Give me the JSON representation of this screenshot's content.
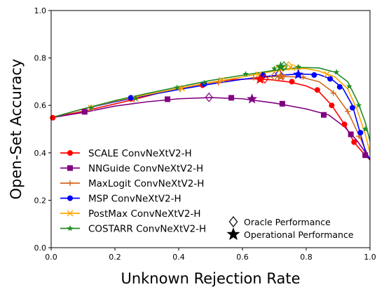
{
  "chart_data": {
    "type": "line",
    "xlabel": "Unknown Rejection Rate",
    "ylabel": "Open-Set Accuracy",
    "xlim": [
      0.0,
      1.0
    ],
    "ylim": [
      0.0,
      1.0
    ],
    "xticks": [
      "0.0",
      "0.2",
      "0.4",
      "0.6",
      "0.8",
      "1.0"
    ],
    "yticks": [
      "0.0",
      "0.2",
      "0.4",
      "0.6",
      "0.8",
      "1.0"
    ],
    "grid": false,
    "legend_position": "lower-left",
    "series": [
      {
        "name": "SCALE ConvNeXtV2-H",
        "color": "#ff0000",
        "marker": "circle",
        "x": [
          0.0,
          0.1,
          0.26,
          0.36,
          0.47,
          0.56,
          0.63,
          0.69,
          0.75,
          0.8,
          0.84,
          0.88,
          0.92,
          0.95,
          0.975,
          1.0
        ],
        "y": [
          0.548,
          0.575,
          0.625,
          0.66,
          0.69,
          0.708,
          0.712,
          0.708,
          0.698,
          0.682,
          0.658,
          0.6,
          0.52,
          0.445,
          0.405,
          0.37
        ],
        "markers_x": [
          0.005,
          0.25,
          0.475,
          0.655,
          0.755,
          0.835,
          0.88,
          0.92,
          0.95
        ],
        "markers_y": [
          0.548,
          0.628,
          0.685,
          0.712,
          0.7,
          0.665,
          0.6,
          0.52,
          0.445
        ],
        "oracle": [
          0.67,
          0.712
        ],
        "operational": [
          0.655,
          0.71
        ]
      },
      {
        "name": "NNGuide ConvNeXtV2-H",
        "color": "#800080",
        "marker": "square",
        "x": [
          0.0,
          0.1,
          0.2,
          0.3,
          0.4,
          0.5,
          0.6,
          0.7,
          0.8,
          0.87,
          0.92,
          0.96,
          1.0
        ],
        "y": [
          0.548,
          0.57,
          0.597,
          0.615,
          0.628,
          0.633,
          0.628,
          0.61,
          0.585,
          0.56,
          0.51,
          0.45,
          0.375
        ],
        "markers_x": [
          0.105,
          0.365,
          0.565,
          0.725,
          0.855,
          0.94,
          0.985
        ],
        "markers_y": [
          0.573,
          0.626,
          0.632,
          0.607,
          0.56,
          0.478,
          0.39
        ],
        "oracle": [
          0.495,
          0.634
        ],
        "operational": [
          0.63,
          0.627
        ]
      },
      {
        "name": "MaxLogit ConvNeXtV2-H",
        "color": "#d2691e",
        "marker": "plus",
        "x": [
          0.0,
          0.1,
          0.2,
          0.3,
          0.4,
          0.5,
          0.6,
          0.7,
          0.78,
          0.84,
          0.89,
          0.93,
          0.96,
          0.98,
          1.0
        ],
        "y": [
          0.548,
          0.585,
          0.617,
          0.643,
          0.668,
          0.69,
          0.71,
          0.722,
          0.72,
          0.7,
          0.65,
          0.575,
          0.49,
          0.43,
          0.37
        ],
        "markers_x": [
          0.125,
          0.26,
          0.405,
          0.525,
          0.635,
          0.73,
          0.79,
          0.885,
          0.93,
          0.965
        ],
        "markers_y": [
          0.59,
          0.625,
          0.668,
          0.696,
          0.717,
          0.722,
          0.72,
          0.652,
          0.575,
          0.47
        ],
        "oracle": [
          0.7,
          0.723
        ],
        "operational": [
          0.72,
          0.722
        ]
      },
      {
        "name": "MSP ConvNeXtV2-H",
        "color": "#0000ff",
        "marker": "circle",
        "x": [
          0.0,
          0.1,
          0.2,
          0.3,
          0.4,
          0.5,
          0.6,
          0.7,
          0.78,
          0.84,
          0.88,
          0.915,
          0.945,
          0.97,
          0.985,
          1.0
        ],
        "y": [
          0.548,
          0.585,
          0.615,
          0.642,
          0.667,
          0.69,
          0.71,
          0.726,
          0.732,
          0.73,
          0.71,
          0.672,
          0.6,
          0.48,
          0.41,
          0.37
        ],
        "markers_x": [
          0.25,
          0.48,
          0.665,
          0.775,
          0.825,
          0.875,
          0.905,
          0.945,
          0.97
        ],
        "markers_y": [
          0.632,
          0.69,
          0.727,
          0.73,
          0.728,
          0.712,
          0.678,
          0.59,
          0.485
        ],
        "oracle": [
          0.715,
          0.733
        ],
        "operational": [
          0.775,
          0.73
        ]
      },
      {
        "name": "PostMax ConvNeXtV2-H",
        "color": "#ffa500",
        "marker": "x",
        "x": [
          0.0,
          0.1,
          0.2,
          0.3,
          0.4,
          0.5,
          0.6,
          0.7,
          0.76,
          0.8,
          0.84,
          0.89,
          0.93,
          0.96,
          0.985,
          1.0
        ],
        "y": [
          0.548,
          0.585,
          0.618,
          0.645,
          0.672,
          0.697,
          0.72,
          0.745,
          0.755,
          0.755,
          0.745,
          0.72,
          0.67,
          0.58,
          0.48,
          0.4
        ],
        "markers_x": [
          0.125,
          0.265,
          0.41,
          0.535,
          0.65,
          0.75,
          0.77,
          0.865
        ],
        "markers_y": [
          0.59,
          0.628,
          0.672,
          0.707,
          0.73,
          0.762,
          0.758,
          0.732
        ],
        "oracle": [
          0.745,
          0.766
        ],
        "operational": [
          0.72,
          0.758
        ]
      },
      {
        "name": "COSTARR ConvNeXtV2-H",
        "color": "#228b22",
        "marker": "star",
        "x": [
          0.0,
          0.1,
          0.2,
          0.3,
          0.4,
          0.5,
          0.6,
          0.7,
          0.78,
          0.84,
          0.89,
          0.93,
          0.96,
          0.985,
          1.0
        ],
        "y": [
          0.548,
          0.585,
          0.62,
          0.65,
          0.678,
          0.705,
          0.727,
          0.748,
          0.76,
          0.758,
          0.74,
          0.7,
          0.62,
          0.53,
          0.45
        ],
        "markers_x": [
          0.125,
          0.265,
          0.395,
          0.48,
          0.61,
          0.7,
          0.775,
          0.895,
          0.935,
          0.965,
          0.985
        ],
        "markers_y": [
          0.59,
          0.63,
          0.675,
          0.695,
          0.732,
          0.755,
          0.762,
          0.74,
          0.68,
          0.6,
          0.5
        ],
        "oracle": [
          0.73,
          0.766
        ],
        "operational": [
          0.72,
          0.763
        ]
      }
    ],
    "legend_extra": [
      {
        "label": "Oracle Performance",
        "marker": "diamond-open"
      },
      {
        "label": "Operational Performance",
        "marker": "star-filled"
      }
    ]
  }
}
